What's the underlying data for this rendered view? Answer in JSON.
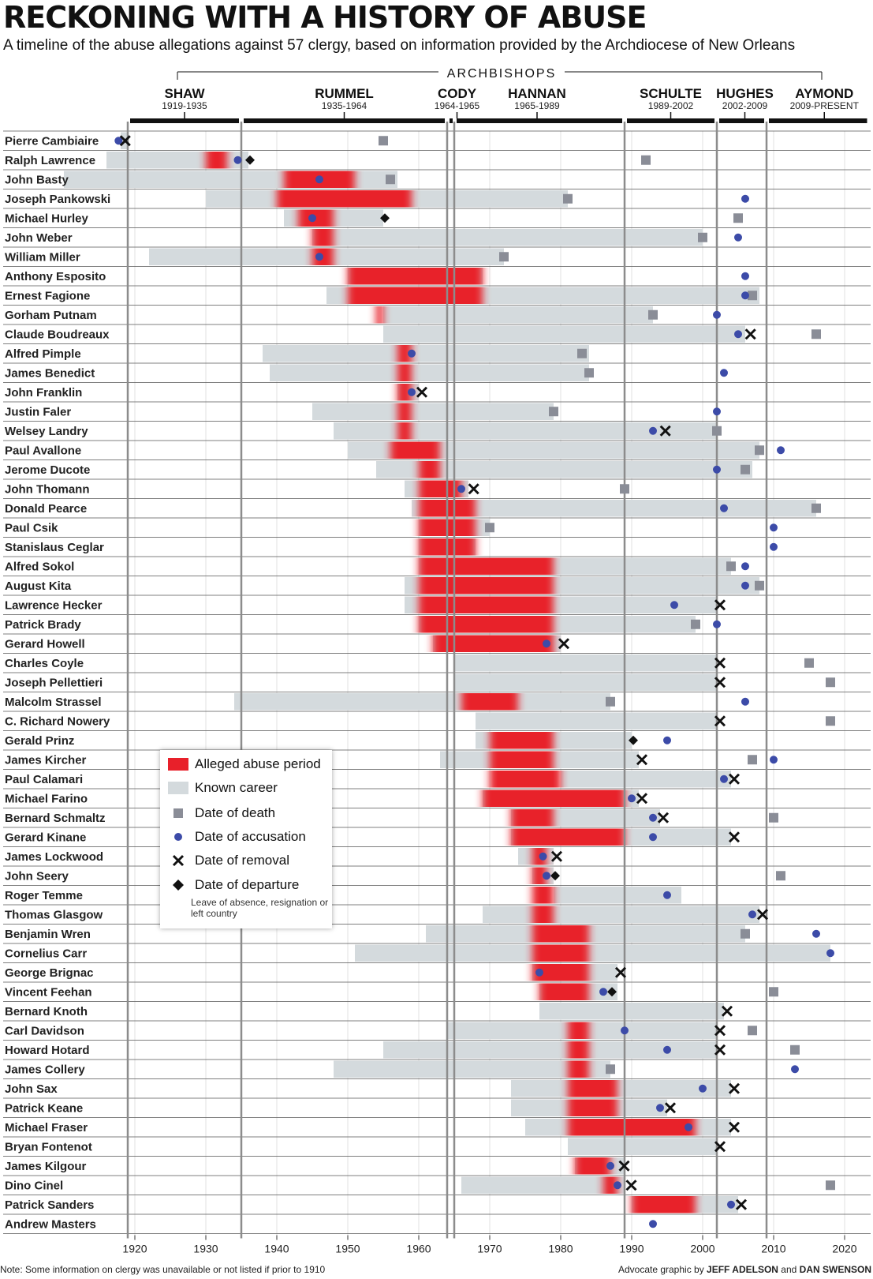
{
  "title": "RECKONING WITH A HISTORY OF ABUSE",
  "subtitle": "A timeline of the abuse allegations against 57 clergy, based on information provided by the Archdiocese of New Orleans",
  "archbishops_heading": "ARCHBISHOPS",
  "note": "Note: Some information on clergy was unavailable or not listed if prior to 1910",
  "credit": {
    "prefix": "Advocate graphic by ",
    "author1": "JEFF ADELSON",
    "joiner": " and ",
    "author2": "DAN SWENSON"
  },
  "legend": {
    "abuse": "Alleged abuse period",
    "career": "Known career",
    "death": "Date of death",
    "accusation": "Date of accusation",
    "removal": "Date of removal",
    "departure": "Date of departure",
    "departure_note": "Leave of absence, resignation or left country"
  },
  "colors": {
    "abuse": "#e8202a",
    "career": "#d4dadd",
    "death": "#8a8d97",
    "accusation": "#3c4ba8",
    "marker": "#111111",
    "grid": "#8c8c8c"
  },
  "chart_data": {
    "type": "timeline",
    "xlim": [
      1910,
      2024
    ],
    "x_ticks": [
      1920,
      1930,
      1940,
      1950,
      1960,
      1970,
      1980,
      1990,
      2000,
      2010,
      2020
    ],
    "archbishops": [
      {
        "name": "SHAW",
        "years": "1919-1935",
        "start": 1919,
        "end": 1935
      },
      {
        "name": "RUMMEL",
        "years": "1935-1964",
        "start": 1935,
        "end": 1964
      },
      {
        "name": "CODY",
        "years": "1964-1965",
        "start": 1964,
        "end": 1965
      },
      {
        "name": "HANNAN",
        "years": "1965-1989",
        "start": 1965,
        "end": 1989
      },
      {
        "name": "SCHULTE",
        "years": "1989-2002",
        "start": 1989,
        "end": 2002
      },
      {
        "name": "HUGHES",
        "years": "2002-2009",
        "start": 2002,
        "end": 2009
      },
      {
        "name": "AYMOND",
        "years": "2009-PRESENT",
        "start": 2009,
        "end": 2024
      }
    ],
    "clergy": [
      {
        "name": "Pierre Cambiaire",
        "career": [
          1918,
          1919
        ],
        "abuse": null,
        "death": 1955,
        "accusation": 1917.7,
        "removal": 1918.2,
        "departure": null
      },
      {
        "name": "Ralph Lawrence",
        "career": [
          1916,
          1936
        ],
        "abuse": [
          1930,
          1933
        ],
        "death": 1992,
        "accusation": 1934.5,
        "removal": null,
        "departure": 1936
      },
      {
        "name": "John Basty",
        "career": [
          1910,
          1957
        ],
        "abuse": [
          1941,
          1951
        ],
        "death": 1956,
        "accusation": 1946,
        "removal": null,
        "departure": null
      },
      {
        "name": "Joseph Pankowski",
        "career": [
          1930,
          1981
        ],
        "abuse": [
          1940,
          1959
        ],
        "death": 1981,
        "accusation": 2006,
        "removal": null,
        "departure": null
      },
      {
        "name": "Michael Hurley",
        "career": [
          1941,
          1955
        ],
        "abuse": [
          1943,
          1948
        ],
        "death": 2005,
        "accusation": 1945,
        "removal": null,
        "departure": 1955
      },
      {
        "name": "John Weber",
        "career": [
          1945,
          2000
        ],
        "abuse": [
          1945,
          1948
        ],
        "death": 2000,
        "accusation": 2005,
        "removal": null,
        "departure": null
      },
      {
        "name": "William Miller",
        "career": [
          1922,
          1972
        ],
        "abuse": [
          1945,
          1948
        ],
        "death": 1972,
        "accusation": 1946,
        "removal": null,
        "departure": null
      },
      {
        "name": "Anthony Esposito",
        "career": [
          1950,
          1969
        ],
        "abuse": [
          1950,
          1969
        ],
        "death": null,
        "accusation": 2006,
        "removal": null,
        "departure": null
      },
      {
        "name": "Ernest Fagione",
        "career": [
          1947,
          2008
        ],
        "abuse": [
          1950,
          1969
        ],
        "death": 2007,
        "accusation": 2006,
        "removal": null,
        "departure": null
      },
      {
        "name": "Gorham Putnam",
        "career": [
          1955,
          1993
        ],
        "abuse": [
          1954,
          1955
        ],
        "death": 1993,
        "accusation": 2002,
        "removal": null,
        "departure": null
      },
      {
        "name": "Claude Boudreaux",
        "career": [
          1955,
          2006
        ],
        "abuse": null,
        "death": 2016,
        "accusation": 2005,
        "removal": 2006.3,
        "departure": null
      },
      {
        "name": "Alfred Pimple",
        "career": [
          1938,
          1984
        ],
        "abuse": [
          1957,
          1959
        ],
        "death": 1983,
        "accusation": 1959,
        "removal": null,
        "departure": null
      },
      {
        "name": "James Benedict",
        "career": [
          1939,
          1984
        ],
        "abuse": [
          1957,
          1959
        ],
        "death": 1984,
        "accusation": 2003,
        "removal": null,
        "departure": null
      },
      {
        "name": "John Franklin",
        "career": [
          1957,
          1960
        ],
        "abuse": [
          1957,
          1959
        ],
        "death": null,
        "accusation": 1959,
        "removal": 1960,
        "departure": null
      },
      {
        "name": "Justin Faler",
        "career": [
          1945,
          1979
        ],
        "abuse": [
          1957,
          1959
        ],
        "death": 1979,
        "accusation": 2002,
        "removal": null,
        "departure": null
      },
      {
        "name": "Welsey Landry",
        "career": [
          1948,
          2002
        ],
        "abuse": [
          1957,
          1959
        ],
        "death": 2002,
        "accusation": 1993,
        "removal": 1994.3,
        "departure": null
      },
      {
        "name": "Paul Avallone",
        "career": [
          1950,
          2008
        ],
        "abuse": [
          1956,
          1963
        ],
        "death": 2008,
        "accusation": 2011,
        "removal": null,
        "departure": null
      },
      {
        "name": "Jerome Ducote",
        "career": [
          1954,
          2007
        ],
        "abuse": [
          1960,
          1963
        ],
        "death": 2006,
        "accusation": 2002,
        "removal": null,
        "departure": null
      },
      {
        "name": "John Thomann",
        "career": [
          1958,
          1967
        ],
        "abuse": [
          1960,
          1966
        ],
        "death": 1989,
        "accusation": 1966,
        "removal": 1967.3,
        "departure": null
      },
      {
        "name": "Donald Pearce",
        "career": [
          1959,
          2016
        ],
        "abuse": [
          1960,
          1968
        ],
        "death": 2016,
        "accusation": 2003,
        "removal": null,
        "departure": null
      },
      {
        "name": "Paul Csik",
        "career": [
          1960,
          1970
        ],
        "abuse": [
          1960,
          1968
        ],
        "death": 1970,
        "accusation": 2010,
        "removal": null,
        "departure": null
      },
      {
        "name": "Stanislaus Ceglar",
        "career": [
          1960,
          1968
        ],
        "abuse": [
          1960,
          1968
        ],
        "death": null,
        "accusation": 2010,
        "removal": null,
        "departure": null
      },
      {
        "name": "Alfred Sokol",
        "career": [
          1960,
          2004
        ],
        "abuse": [
          1960,
          1979
        ],
        "death": 2004,
        "accusation": 2006,
        "removal": null,
        "departure": null
      },
      {
        "name": "August Kita",
        "career": [
          1958,
          2008
        ],
        "abuse": [
          1960,
          1979
        ],
        "death": 2008,
        "accusation": 2006,
        "removal": null,
        "departure": null
      },
      {
        "name": "Lawrence Hecker",
        "career": [
          1958,
          2002
        ],
        "abuse": [
          1960,
          1979
        ],
        "death": null,
        "accusation": 1996,
        "removal": 2002,
        "departure": null
      },
      {
        "name": "Patrick Brady",
        "career": [
          1960,
          1999
        ],
        "abuse": [
          1960,
          1979
        ],
        "death": 1999,
        "accusation": 2002,
        "removal": null,
        "departure": null
      },
      {
        "name": "Gerard Howell",
        "career": [
          1962,
          1980
        ],
        "abuse": [
          1962,
          1979
        ],
        "death": null,
        "accusation": 1978,
        "removal": 1980,
        "departure": null
      },
      {
        "name": "Charles Coyle",
        "career": [
          1965,
          2002
        ],
        "abuse": null,
        "death": 2015,
        "accusation": null,
        "removal": 2002,
        "departure": null
      },
      {
        "name": "Joseph Pellettieri",
        "career": [
          1965,
          2002
        ],
        "abuse": null,
        "death": 2018,
        "accusation": null,
        "removal": 2002,
        "departure": null
      },
      {
        "name": "Malcolm Strassel",
        "career": [
          1934,
          1987
        ],
        "abuse": [
          1966,
          1974
        ],
        "death": 1987,
        "accusation": 2006,
        "removal": null,
        "departure": null
      },
      {
        "name": "C. Richard Nowery",
        "career": [
          1968,
          2002
        ],
        "abuse": null,
        "death": 2018,
        "accusation": null,
        "removal": 2002,
        "departure": null
      },
      {
        "name": "Gerald Prinz",
        "career": [
          1968,
          1990
        ],
        "abuse": [
          1970,
          1979
        ],
        "death": null,
        "accusation": 1995,
        "removal": null,
        "departure": 1990
      },
      {
        "name": "James Kircher",
        "career": [
          1963,
          1991
        ],
        "abuse": [
          1970,
          1979
        ],
        "death": 2007,
        "accusation": 2010,
        "removal": 1991,
        "departure": null
      },
      {
        "name": "Paul Calamari",
        "career": [
          1980,
          2004
        ],
        "abuse": [
          1970,
          1980
        ],
        "death": null,
        "accusation": 2003,
        "removal": 2004,
        "departure": null
      },
      {
        "name": "Michael Farino",
        "career": [
          1969,
          1991
        ],
        "abuse": [
          1969,
          1989
        ],
        "death": null,
        "accusation": 1990,
        "removal": 1991,
        "departure": null
      },
      {
        "name": "Bernard Schmaltz",
        "career": [
          1973,
          1994
        ],
        "abuse": [
          1973,
          1979
        ],
        "death": 2010,
        "accusation": 1993,
        "removal": 1994,
        "departure": null
      },
      {
        "name": "Gerard Kinane",
        "career": [
          1973,
          2004
        ],
        "abuse": [
          1973,
          1989
        ],
        "death": null,
        "accusation": 1993,
        "removal": 2004,
        "departure": null
      },
      {
        "name": "James Lockwood",
        "career": [
          1974,
          1979
        ],
        "abuse": [
          1976,
          1978
        ],
        "death": null,
        "accusation": 1977.5,
        "removal": 1979,
        "departure": null
      },
      {
        "name": "John Seery",
        "career": [
          1976,
          1979
        ],
        "abuse": [
          1976,
          1978
        ],
        "death": 2011,
        "accusation": 1978,
        "removal": null,
        "departure": 1979
      },
      {
        "name": "Roger Temme",
        "career": [
          1979,
          1997
        ],
        "abuse": [
          1976,
          1979
        ],
        "death": null,
        "accusation": 1995,
        "removal": null,
        "departure": null
      },
      {
        "name": "Thomas Glasgow",
        "career": [
          1969,
          2008
        ],
        "abuse": [
          1976,
          1979
        ],
        "death": null,
        "accusation": 2007,
        "removal": 2008,
        "departure": null
      },
      {
        "name": "Benjamin Wren",
        "career": [
          1961,
          2006
        ],
        "abuse": [
          1976,
          1984
        ],
        "death": 2006,
        "accusation": 2016,
        "removal": null,
        "departure": null
      },
      {
        "name": "Cornelius Carr",
        "career": [
          1951,
          2018
        ],
        "abuse": [
          1976,
          1984
        ],
        "death": null,
        "accusation": 2018,
        "removal": null,
        "departure": null
      },
      {
        "name": "George Brignac",
        "career": [
          1976,
          1988
        ],
        "abuse": [
          1976,
          1984
        ],
        "death": null,
        "accusation": 1977,
        "removal": 1988,
        "departure": null
      },
      {
        "name": "Vincent Feehan",
        "career": [
          1977,
          1988
        ],
        "abuse": [
          1977,
          1984
        ],
        "death": 2010,
        "accusation": 1986,
        "removal": null,
        "departure": 1987
      },
      {
        "name": "Bernard Knoth",
        "career": [
          1977,
          2003
        ],
        "abuse": null,
        "death": null,
        "accusation": null,
        "removal": 2003,
        "departure": null
      },
      {
        "name": "Carl Davidson",
        "career": [
          1964,
          2002
        ],
        "abuse": [
          1981,
          1984
        ],
        "death": 2007,
        "accusation": 1989,
        "removal": 2002,
        "departure": null
      },
      {
        "name": "Howard Hotard",
        "career": [
          1955,
          2002
        ],
        "abuse": [
          1981,
          1984
        ],
        "death": 2013,
        "accusation": 1995,
        "removal": 2002,
        "departure": null
      },
      {
        "name": "James Collery",
        "career": [
          1948,
          1987
        ],
        "abuse": [
          1981,
          1984
        ],
        "death": 1987,
        "accusation": 2013,
        "removal": null,
        "departure": null
      },
      {
        "name": "John Sax",
        "career": [
          1973,
          2004
        ],
        "abuse": [
          1981,
          1988
        ],
        "death": null,
        "accusation": 2000,
        "removal": 2004,
        "departure": null
      },
      {
        "name": "Patrick Keane",
        "career": [
          1973,
          1995
        ],
        "abuse": [
          1981,
          1988
        ],
        "death": null,
        "accusation": 1994,
        "removal": 1995,
        "departure": null
      },
      {
        "name": "Michael Fraser",
        "career": [
          1975,
          2004
        ],
        "abuse": [
          1981,
          1999
        ],
        "death": null,
        "accusation": 1998,
        "removal": 2004,
        "departure": null
      },
      {
        "name": "Bryan Fontenot",
        "career": [
          1981,
          2002
        ],
        "abuse": null,
        "death": null,
        "accusation": null,
        "removal": 2002,
        "departure": null
      },
      {
        "name": "James Kilgour",
        "career": [
          1982,
          1989
        ],
        "abuse": [
          1982,
          1987
        ],
        "death": null,
        "accusation": 1987,
        "removal": 1988.5,
        "departure": null
      },
      {
        "name": "Dino Cinel",
        "career": [
          1966,
          1989
        ],
        "abuse": [
          1986,
          1988
        ],
        "death": 2018,
        "accusation": 1988,
        "removal": 1989.5,
        "departure": null
      },
      {
        "name": "Patrick Sanders",
        "career": [
          1990,
          2005
        ],
        "abuse": [
          1990,
          1999
        ],
        "death": null,
        "accusation": 2004,
        "removal": 2005,
        "departure": null
      },
      {
        "name": "Andrew Masters",
        "career": null,
        "abuse": null,
        "death": null,
        "accusation": 1993,
        "removal": null,
        "departure": null
      }
    ]
  }
}
